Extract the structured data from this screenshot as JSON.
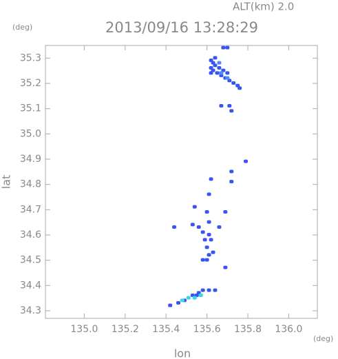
{
  "chart_data": {
    "type": "scatter",
    "title": "2013/09/16 13:28:29",
    "subtitle": "ALT(km) 2.0",
    "x_label": "lon",
    "x_unit": "(deg)",
    "y_label": "lat",
    "y_unit": "(deg)",
    "xlim": [
      134.81,
      136.14
    ],
    "ylim": [
      34.27,
      35.35
    ],
    "xticks": [
      {
        "value": 135.0,
        "label": "135.0"
      },
      135.2,
      135.4,
      135.6,
      135.8,
      {
        "value": 136.0,
        "label": "136.0"
      }
    ],
    "yticks": [
      34.3,
      34.4,
      34.5,
      34.6,
      34.7,
      34.8,
      34.9,
      {
        "value": 35.0,
        "label": "35.0"
      },
      35.1,
      35.2,
      35.3
    ],
    "series": [
      {
        "color": "#3a55ee",
        "x": [
          135.68,
          135.7,
          135.62,
          135.63,
          135.64,
          135.62,
          135.63,
          135.65,
          135.67,
          135.69,
          135.71,
          135.73,
          135.75,
          135.76,
          135.66,
          135.68,
          135.7,
          135.64,
          135.62,
          135.67,
          135.71,
          135.72,
          135.79,
          135.72,
          135.72,
          135.62,
          135.61,
          135.54,
          135.69,
          135.6,
          135.44,
          135.53,
          135.56,
          135.58,
          135.61,
          135.66,
          135.62,
          135.6,
          135.61,
          135.58,
          135.6,
          135.63,
          135.69,
          135.59,
          135.61,
          135.58,
          135.61,
          135.64,
          135.55,
          135.53,
          135.49,
          135.46,
          135.42,
          135.56
        ],
        "y": [
          35.34,
          35.34,
          35.29,
          35.28,
          35.27,
          35.26,
          35.25,
          35.24,
          35.23,
          35.22,
          35.21,
          35.2,
          35.19,
          35.18,
          35.26,
          35.25,
          35.24,
          35.3,
          35.24,
          35.11,
          35.11,
          35.09,
          34.89,
          34.85,
          34.81,
          34.82,
          34.76,
          34.71,
          34.69,
          34.69,
          34.63,
          34.64,
          34.63,
          34.61,
          34.65,
          34.63,
          34.58,
          34.55,
          34.52,
          34.5,
          34.5,
          34.53,
          34.47,
          34.58,
          34.6,
          34.38,
          34.38,
          34.38,
          34.36,
          34.36,
          34.34,
          34.33,
          34.32,
          34.37
        ]
      },
      {
        "color": "#4a8cff",
        "x": [
          135.66,
          135.67,
          135.7
        ],
        "y": [
          35.28,
          35.24,
          35.22
        ]
      },
      {
        "color": "#33d8ee",
        "x": [
          135.48,
          135.51,
          135.54,
          135.57
        ],
        "y": [
          34.34,
          34.35,
          34.35,
          34.36
        ]
      }
    ]
  }
}
